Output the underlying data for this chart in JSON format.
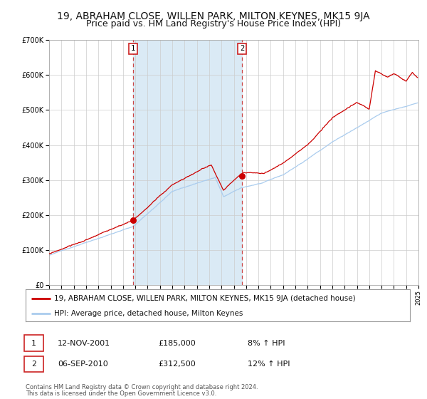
{
  "title": "19, ABRAHAM CLOSE, WILLEN PARK, MILTON KEYNES, MK15 9JA",
  "subtitle": "Price paid vs. HM Land Registry's House Price Index (HPI)",
  "red_label": "19, ABRAHAM CLOSE, WILLEN PARK, MILTON KEYNES, MK15 9JA (detached house)",
  "blue_label": "HPI: Average price, detached house, Milton Keynes",
  "transaction1_date": "12-NOV-2001",
  "transaction1_price": 185000,
  "transaction1_price_str": "£185,000",
  "transaction1_hpi": "8% ↑ HPI",
  "transaction2_date": "06-SEP-2010",
  "transaction2_price": 312500,
  "transaction2_price_str": "£312,500",
  "transaction2_hpi": "12% ↑ HPI",
  "footnote1": "Contains HM Land Registry data © Crown copyright and database right 2024.",
  "footnote2": "This data is licensed under the Open Government Licence v3.0.",
  "ylim": [
    0,
    700000
  ],
  "yticks": [
    0,
    100000,
    200000,
    300000,
    400000,
    500000,
    600000,
    700000
  ],
  "background_color": "#ffffff",
  "shaded_region_color": "#daeaf5",
  "red_color": "#cc0000",
  "blue_color": "#aaccee",
  "grid_color": "#cccccc",
  "dashed_color": "#cc4444",
  "title_fontsize": 10,
  "subtitle_fontsize": 9,
  "tick_fontsize": 7,
  "legend_fontsize": 7.5,
  "info_fontsize": 8
}
